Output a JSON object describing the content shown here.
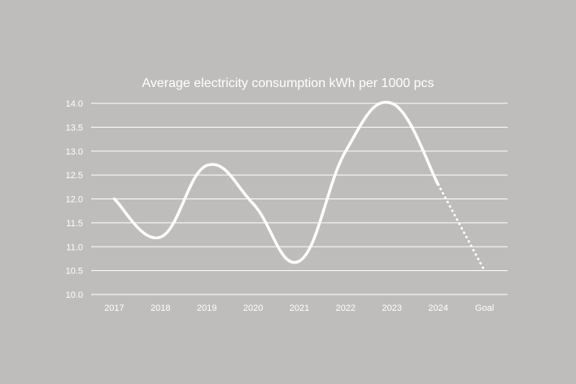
{
  "chart_data": {
    "type": "line",
    "title": "Average electricity consumption kWh per 1000 pcs",
    "xlabel": "",
    "ylabel": "",
    "categories": [
      "2017",
      "2018",
      "2019",
      "2020",
      "2021",
      "2022",
      "2023",
      "2024",
      "Goal"
    ],
    "y_ticks": [
      "10.0",
      "10.5",
      "11.0",
      "11.5",
      "12.0",
      "12.5",
      "13.0",
      "13.5",
      "14.0"
    ],
    "ylim": [
      10.0,
      14.0
    ],
    "grid": true,
    "legend": "none",
    "series": [
      {
        "values": [
          12.0,
          11.2,
          12.7,
          11.9,
          10.7,
          13.0,
          14.0,
          12.3,
          10.5
        ],
        "color": "#ffffff",
        "projection_from_category": "2024",
        "projection_style": "dotted"
      }
    ]
  },
  "colors": {
    "background": "#bfbdbb",
    "line": "#ffffff",
    "grid": "#ffffff",
    "text": "#ffffff"
  }
}
